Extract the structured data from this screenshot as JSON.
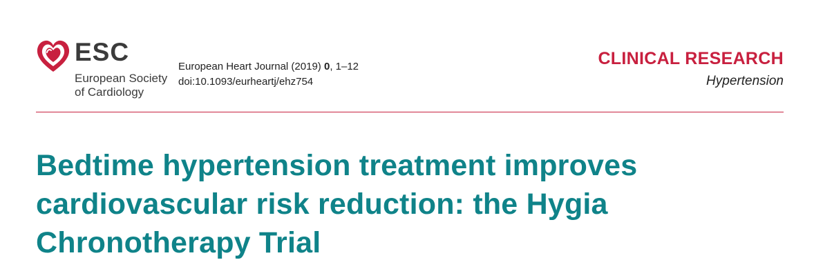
{
  "logo": {
    "abbr": "ESC",
    "name_line1": "European Society",
    "name_line2": "of Cardiology",
    "heart_color": "#c8203f",
    "icon": "heart-icon"
  },
  "journal": {
    "name_prefix": "European Heart Journal (2019) ",
    "volume": "0",
    "pages": ", 1–12",
    "doi": "doi:10.1093/eurheartj/ehz754"
  },
  "section": {
    "title": "CLINICAL RESEARCH",
    "subtitle": "Hypertension"
  },
  "article": {
    "title": "Bedtime hypertension treatment improves cardiovascular risk reduction: the Hygia Chronotherapy Trial"
  },
  "colors": {
    "accent_red": "#c8203f",
    "title_teal": "#0f8389",
    "text_dark": "#222222"
  }
}
